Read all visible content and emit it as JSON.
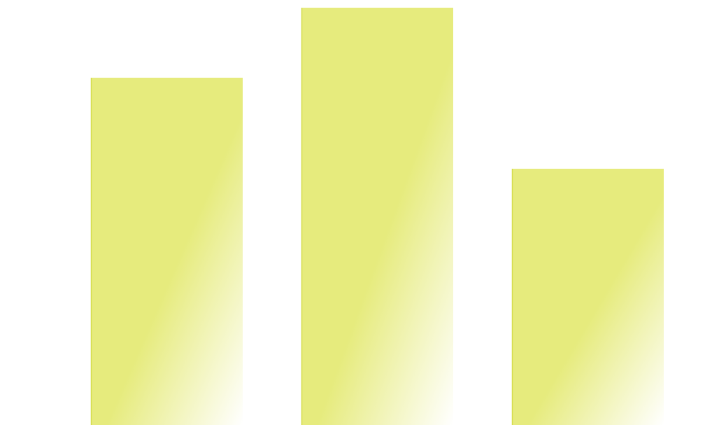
{
  "chart_data": {
    "type": "bar",
    "categories": [
      "",
      "",
      ""
    ],
    "values": [
      496,
      596,
      366
    ],
    "ylim": [
      0,
      606
    ],
    "grid": false,
    "colors": {
      "bar": "#e6eb7d",
      "bar_fade": "#ffffff",
      "bar_edge": "#d4dc4c"
    }
  }
}
